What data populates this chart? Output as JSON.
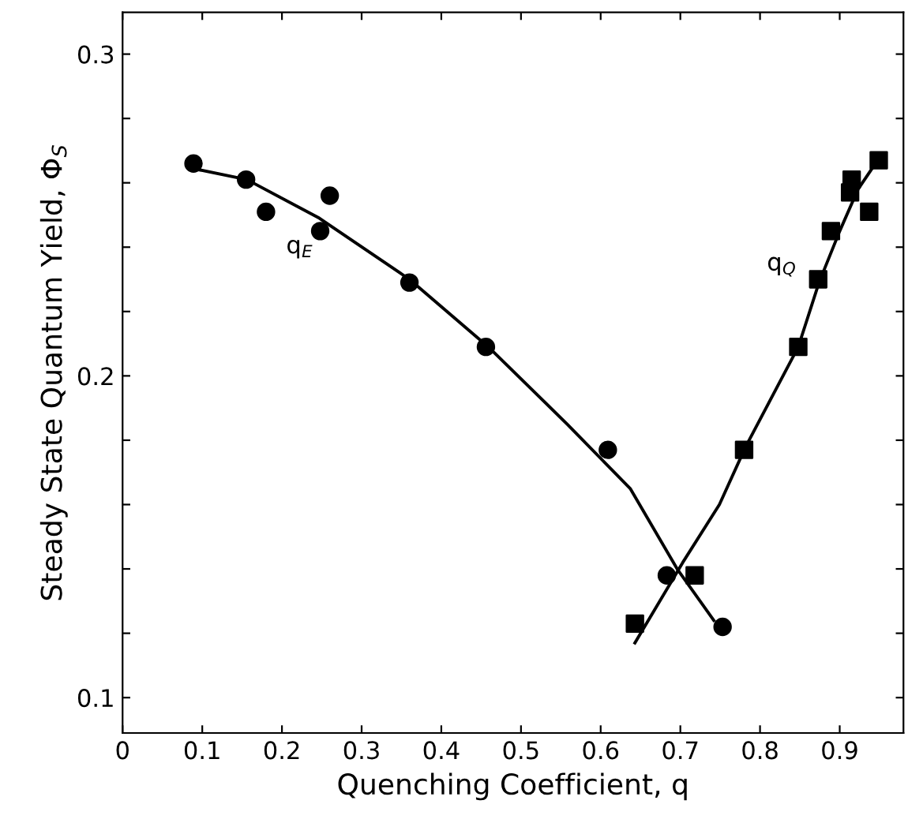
{
  "chart_data": {
    "type": "scatter",
    "xlabel": "Quenching Coefficient, q",
    "ylabel": "Steady State Quantum Yield, Φ$_{S}$",
    "xlim": [
      0,
      0.98
    ],
    "ylim": [
      0.089,
      0.313
    ],
    "xticks": [
      0,
      0.1,
      0.2,
      0.3,
      0.4,
      0.5,
      0.6,
      0.7,
      0.8,
      0.9
    ],
    "yticks": [
      0.1,
      {
        "value": 0.12,
        "label": null
      },
      {
        "value": 0.14,
        "label": null
      },
      {
        "value": 0.16,
        "label": null
      },
      {
        "value": 0.18,
        "label": null
      },
      0.2,
      {
        "value": 0.22,
        "label": null
      },
      {
        "value": 0.24,
        "label": null
      },
      {
        "value": 0.26,
        "label": null
      },
      {
        "value": 0.28,
        "label": null
      },
      0.3
    ],
    "grid": false,
    "legend": false,
    "series": [
      {
        "marker": "circle",
        "color": "#000000",
        "x": [
          0.089,
          0.155,
          0.18,
          0.248,
          0.26,
          0.36,
          0.456,
          0.609,
          0.683,
          0.753
        ],
        "values": [
          0.266,
          0.261,
          0.251,
          0.245,
          0.256,
          0.229,
          0.209,
          0.177,
          0.138,
          0.122
        ]
      },
      {
        "marker": "square",
        "color": "#000000",
        "x": [
          0.643,
          0.718,
          0.78,
          0.848,
          0.873,
          0.889,
          0.913,
          0.915,
          0.937,
          0.949
        ],
        "values": [
          0.123,
          0.138,
          0.177,
          0.209,
          0.23,
          0.245,
          0.257,
          0.261,
          0.251,
          0.267
        ]
      },
      {
        "type": "line",
        "name": "q$_{E}$",
        "line_style": "solid",
        "color": "#000000",
        "x": [
          0.097,
          0.156,
          0.247,
          0.36,
          0.459,
          0.558,
          0.637,
          0.696,
          0.742
        ],
        "values": [
          0.264,
          0.261,
          0.249,
          0.23,
          0.209,
          0.185,
          0.165,
          0.14,
          0.124
        ]
      },
      {
        "type": "line",
        "name": "q$_{Q}$",
        "line_style": "solid",
        "color": "#000000",
        "x": [
          0.643,
          0.703,
          0.749,
          0.782,
          0.848,
          0.874,
          0.9,
          0.923,
          0.953
        ],
        "values": [
          0.117,
          0.142,
          0.16,
          0.178,
          0.209,
          0.229,
          0.245,
          0.258,
          0.269
        ]
      }
    ]
  }
}
